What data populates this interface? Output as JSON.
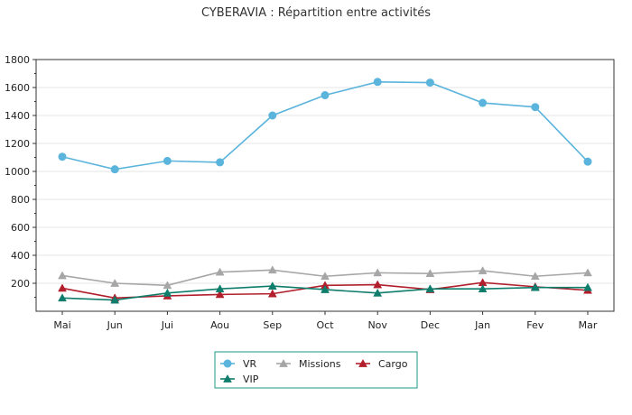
{
  "chart_data": {
    "type": "line",
    "title": "CYBERAVIA : Répartition entre activités",
    "xlabel": "",
    "ylabel": "",
    "categories": [
      "Mai",
      "Jun",
      "Jui",
      "Aou",
      "Sep",
      "Oct",
      "Nov",
      "Dec",
      "Jan",
      "Fev",
      "Mar"
    ],
    "ylim": [
      0,
      1800
    ],
    "yticks": [
      200,
      400,
      600,
      800,
      1000,
      1200,
      1400,
      1600,
      1800
    ],
    "grid": true,
    "legend_position": "bottom",
    "series": [
      {
        "name": "VR",
        "color": "#5ab4dc",
        "marker": "diamond",
        "values": [
          1105,
          1015,
          1075,
          1065,
          1400,
          1545,
          1640,
          1635,
          1490,
          1460,
          1070
        ]
      },
      {
        "name": "Missions",
        "color": "#a6a6a6",
        "marker": "triangle",
        "values": [
          255,
          200,
          185,
          280,
          295,
          250,
          275,
          270,
          290,
          250,
          275
        ]
      },
      {
        "name": "Cargo",
        "color": "#b21e2b",
        "marker": "triangle",
        "values": [
          165,
          95,
          110,
          120,
          125,
          185,
          190,
          155,
          205,
          175,
          150
        ]
      },
      {
        "name": "VIP",
        "color": "#0f7d6c",
        "marker": "triangle",
        "values": [
          95,
          80,
          130,
          160,
          180,
          155,
          130,
          160,
          160,
          170,
          170
        ]
      }
    ]
  }
}
